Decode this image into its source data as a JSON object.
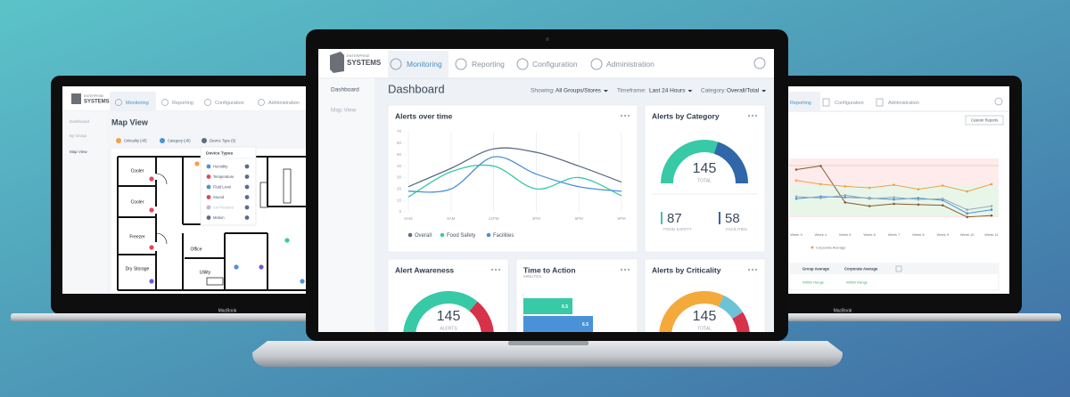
{
  "left_screen": {
    "logo": {
      "small": "ENTERPRISE",
      "big": "SYSTEMS"
    },
    "tabs": [
      "Monitoring",
      "Reporting",
      "Configuration",
      "Administration"
    ],
    "sidebar": [
      "Dashboard",
      "By Group",
      "Map View"
    ],
    "title": "Map View",
    "filters": [
      "Criticality (All)",
      "Category (All)",
      "Device Type (5)"
    ],
    "dropdown": {
      "title": "Device Types",
      "items": [
        "Humidity",
        "Temperature",
        "Fluid Level",
        "Sound",
        "Air Pressure",
        "Motion"
      ]
    },
    "rooms": [
      "Cooler",
      "Cooler",
      "Freezer",
      "Dry Storage",
      "Office",
      "Utility"
    ],
    "laptop_label": "MacBook"
  },
  "center_screen": {
    "logo": {
      "small": "ENTERPRISE",
      "big": "SYSTEMS"
    },
    "tabs": [
      "Monitoring",
      "Reporting",
      "Configuration",
      "Administration"
    ],
    "sidebar": [
      "Dashboard",
      "Map View"
    ],
    "title": "Dashboard",
    "filters": [
      {
        "label": "Showing:",
        "value": "All Groups/Stores"
      },
      {
        "label": "Timeframe:",
        "value": "Last 24 Hours"
      },
      {
        "label": "Category:",
        "value": "Overall/Total"
      }
    ],
    "alerts_over_time": {
      "chart_data": {
        "type": "line",
        "title": "Alerts over time",
        "categories": [
          "6AM",
          "9AM",
          "12PM",
          "3PM",
          "6PM",
          "9PM"
        ],
        "ylim": [
          0,
          70
        ],
        "yticks": [
          0,
          10,
          20,
          30,
          40,
          50,
          60,
          70
        ],
        "series": [
          {
            "name": "Overall",
            "color": "#5d6b85",
            "values": [
              22,
              38,
              55,
              52,
              40,
              26
            ]
          },
          {
            "name": "Food Safety",
            "color": "#38c9a6",
            "values": [
              13,
              35,
              40,
              20,
              30,
              14
            ]
          },
          {
            "name": "Facilities",
            "color": "#4a92d8",
            "values": [
              18,
              20,
              48,
              33,
              22,
              18
            ]
          }
        ]
      }
    },
    "alerts_by_category": {
      "title": "Alerts by Category",
      "total": 145,
      "total_label": "TOTAL",
      "parts": [
        {
          "name": "FOOD SAFETY",
          "value": 87,
          "color": "#38c9a6"
        },
        {
          "name": "FACILITIES",
          "value": 58,
          "color": "#2f67a8"
        }
      ]
    },
    "alert_awareness": {
      "title": "Alert Awareness",
      "total": 145,
      "total_label": "ALERTS"
    },
    "time_to_action": {
      "title": "Time to Action",
      "subtitle": "MINUTES",
      "bars": [
        "6.5",
        "6.5"
      ]
    },
    "alerts_by_criticality": {
      "title": "Alerts by Criticality",
      "total": 145,
      "total_label": "TOTAL"
    }
  },
  "right_screen": {
    "tabs": [
      "Reporting",
      "Configuration",
      "Administration"
    ],
    "button": "Custom Reports",
    "chart_data": {
      "type": "line",
      "categories": [
        "Week 3",
        "Week 4",
        "Week 5",
        "Week 6",
        "Week 7",
        "Week 8",
        "Week 9",
        "Week 10",
        "Week 11"
      ],
      "ylim": [
        0,
        100
      ],
      "series": [
        {
          "color": "#8a5a2b",
          "values": [
            75,
            80,
            30,
            25,
            28,
            27,
            26,
            10,
            12
          ]
        },
        {
          "color": "#f0a04b",
          "values": [
            60,
            55,
            52,
            50,
            54,
            48,
            53,
            45,
            55
          ]
        },
        {
          "color": "#4a92d8",
          "values": [
            35,
            38,
            37,
            36,
            34,
            36,
            33,
            15,
            20
          ]
        },
        {
          "color": "#9aa7b4",
          "values": [
            38,
            36,
            40,
            35,
            37,
            34,
            35,
            20,
            25
          ]
        }
      ]
    },
    "legend": "Corporate Average",
    "table": {
      "headers": [
        "Group Average",
        "Corporate Average"
      ],
      "rows": [
        [
          "Within Range",
          "Within Range"
        ]
      ]
    },
    "laptop_label": "MacBook"
  }
}
